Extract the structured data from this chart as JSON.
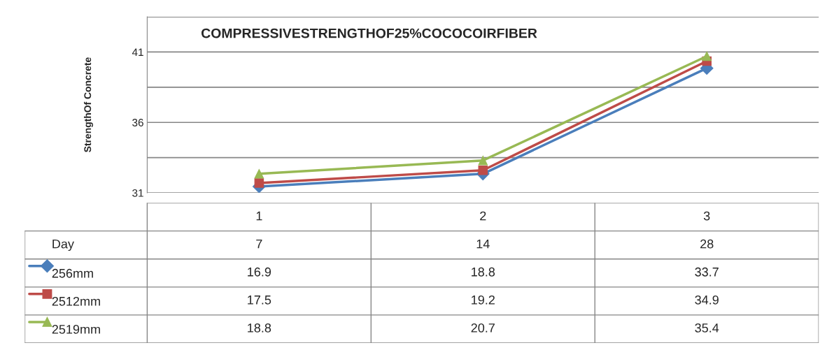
{
  "chart_data": {
    "type": "line",
    "title": "COMPRESSIVESTRENGTHOF25%COCOCOIRFIBER",
    "ylabel": "StrengthOf Concrete",
    "categories": [
      "1",
      "2",
      "3"
    ],
    "series": [
      {
        "name": "256mm",
        "color": "#4a7ebb",
        "marker": "diamond",
        "values": [
          31.45,
          32.35,
          39.85
        ]
      },
      {
        "name": "2512mm",
        "color": "#be4b48",
        "marker": "square",
        "values": [
          31.7,
          32.6,
          40.35
        ]
      },
      {
        "name": "2519mm",
        "color": "#98b954",
        "marker": "triangle",
        "values": [
          32.35,
          33.3,
          40.7
        ]
      }
    ],
    "ylim": [
      31,
      43.5
    ],
    "yticks": [
      31,
      {
        "value": 33.5,
        "label": null
      },
      36,
      {
        "value": 38.5,
        "label": null
      },
      41,
      {
        "value": 43.5,
        "label": null
      }
    ],
    "grid": "y",
    "legend": "bottom",
    "tick_labels": "y",
    "line_style": "solid",
    "annotations": [
      "Day",
      "7",
      "14",
      "28",
      "16.9",
      "18.8",
      "33.7",
      "17.5",
      "19.2",
      "34.9",
      "18.8",
      "20.7",
      "35.4"
    ]
  }
}
